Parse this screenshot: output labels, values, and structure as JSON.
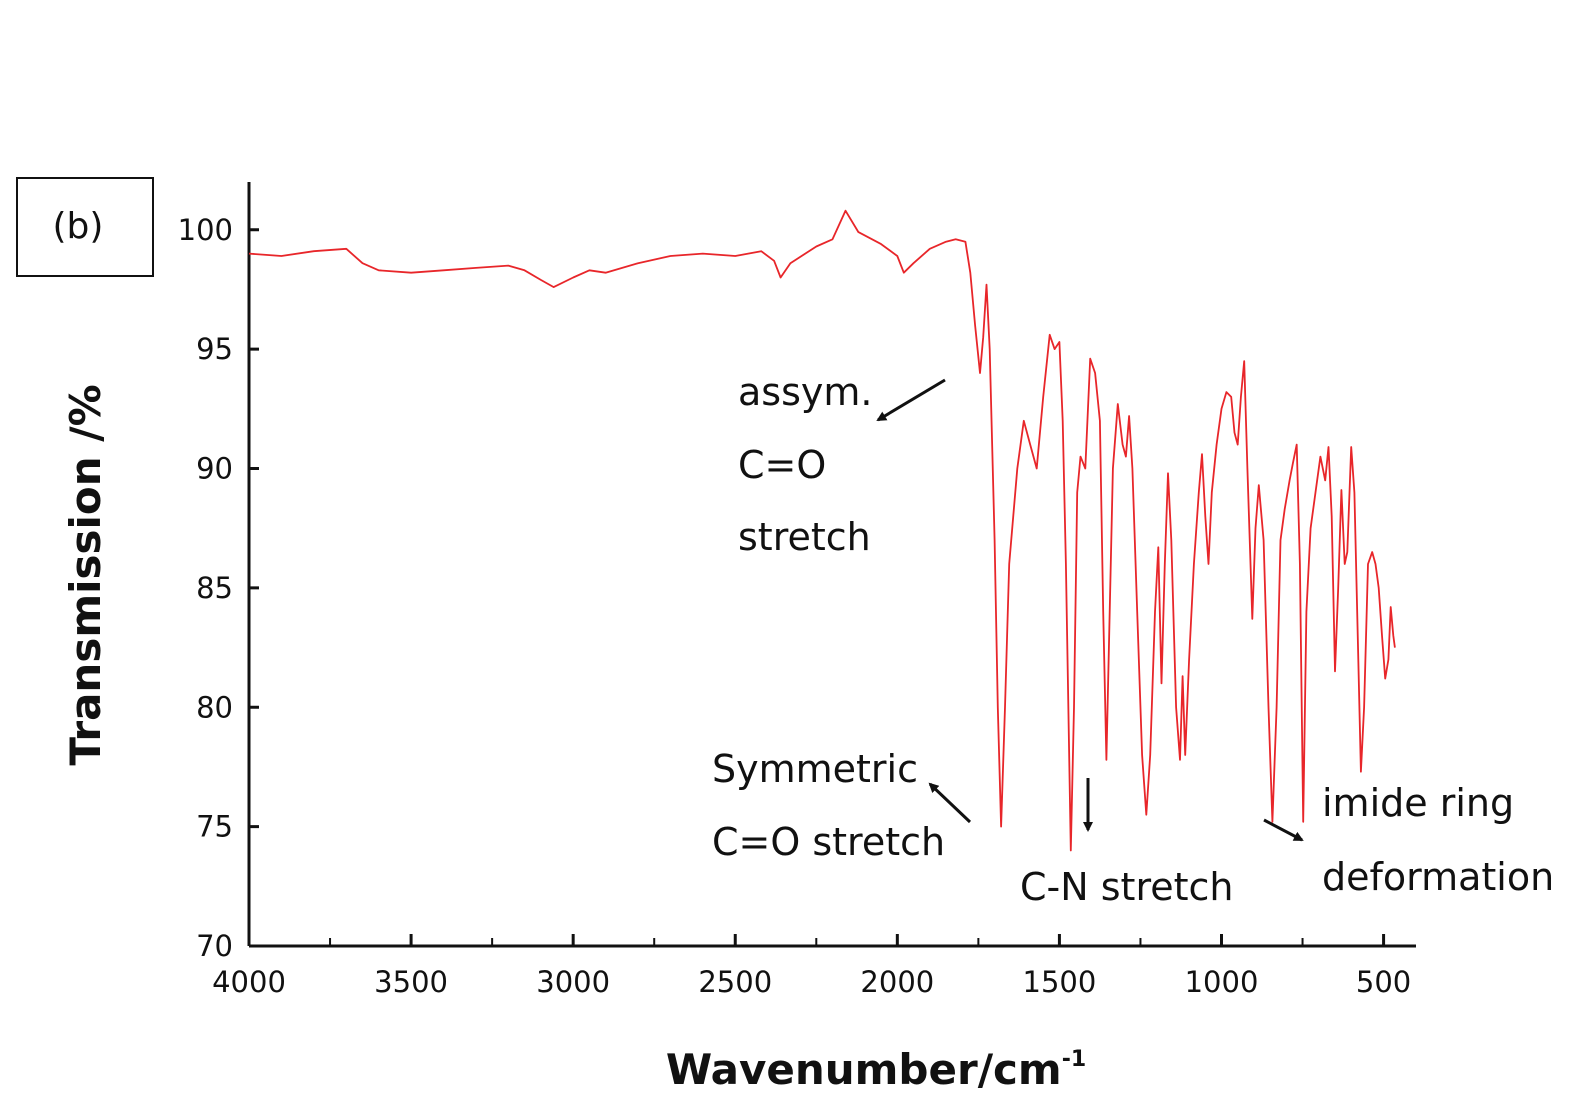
{
  "panel_label": "(b)",
  "colors": {
    "line": "#e8262a",
    "axis": "#111111"
  },
  "chart_data": {
    "type": "line",
    "title": "",
    "xlabel": "Wavenumber/cm",
    "xlabel_sup": "-1",
    "ylabel": "Transmission /%",
    "xlim": [
      4000,
      400
    ],
    "ylim": [
      70,
      102
    ],
    "x_reversed": true,
    "xticks": [
      4000,
      3500,
      3000,
      2500,
      2000,
      1500,
      1000,
      500
    ],
    "xtick_labels": [
      "4000",
      "3500",
      "3000",
      "2500",
      "2000",
      "1500",
      "1000",
      "500"
    ],
    "yticks": [
      70,
      75,
      80,
      85,
      90,
      95,
      100
    ],
    "ytick_labels": [
      "70",
      "75",
      "80",
      "85",
      "90",
      "95",
      "100"
    ],
    "grid": false,
    "legend": "none",
    "series": [
      {
        "points": [
          [
            4000,
            99.0
          ],
          [
            3900,
            98.9
          ],
          [
            3800,
            99.1
          ],
          [
            3700,
            99.2
          ],
          [
            3650,
            98.6
          ],
          [
            3600,
            98.3
          ],
          [
            3500,
            98.2
          ],
          [
            3400,
            98.3
          ],
          [
            3300,
            98.4
          ],
          [
            3200,
            98.5
          ],
          [
            3150,
            98.3
          ],
          [
            3100,
            97.9
          ],
          [
            3060,
            97.6
          ],
          [
            3000,
            98.0
          ],
          [
            2950,
            98.3
          ],
          [
            2900,
            98.2
          ],
          [
            2800,
            98.6
          ],
          [
            2700,
            98.9
          ],
          [
            2600,
            99.0
          ],
          [
            2500,
            98.9
          ],
          [
            2420,
            99.1
          ],
          [
            2380,
            98.7
          ],
          [
            2360,
            98.0
          ],
          [
            2330,
            98.6
          ],
          [
            2250,
            99.3
          ],
          [
            2200,
            99.6
          ],
          [
            2160,
            100.8
          ],
          [
            2120,
            99.9
          ],
          [
            2050,
            99.4
          ],
          [
            2000,
            98.9
          ],
          [
            1980,
            98.2
          ],
          [
            1950,
            98.6
          ],
          [
            1900,
            99.2
          ],
          [
            1850,
            99.5
          ],
          [
            1820,
            99.6
          ],
          [
            1790,
            99.5
          ],
          [
            1775,
            98.2
          ],
          [
            1760,
            96.0
          ],
          [
            1745,
            94.0
          ],
          [
            1735,
            95.5
          ],
          [
            1725,
            97.7
          ],
          [
            1715,
            95.0
          ],
          [
            1700,
            87.0
          ],
          [
            1690,
            80.0
          ],
          [
            1680,
            75.0
          ],
          [
            1668,
            80.0
          ],
          [
            1655,
            86.0
          ],
          [
            1630,
            90.0
          ],
          [
            1610,
            92.0
          ],
          [
            1590,
            91.0
          ],
          [
            1570,
            90.0
          ],
          [
            1550,
            93.0
          ],
          [
            1530,
            95.6
          ],
          [
            1515,
            95.0
          ],
          [
            1500,
            95.3
          ],
          [
            1490,
            92.0
          ],
          [
            1480,
            86.0
          ],
          [
            1465,
            74.0
          ],
          [
            1455,
            80.0
          ],
          [
            1445,
            89.0
          ],
          [
            1435,
            90.5
          ],
          [
            1420,
            90.0
          ],
          [
            1405,
            94.6
          ],
          [
            1390,
            94.0
          ],
          [
            1375,
            92.0
          ],
          [
            1365,
            84.0
          ],
          [
            1355,
            77.8
          ],
          [
            1345,
            84.0
          ],
          [
            1335,
            90.0
          ],
          [
            1320,
            92.7
          ],
          [
            1305,
            91.0
          ],
          [
            1295,
            90.5
          ],
          [
            1285,
            92.2
          ],
          [
            1275,
            90.0
          ],
          [
            1260,
            84.0
          ],
          [
            1245,
            78.0
          ],
          [
            1232,
            75.5
          ],
          [
            1220,
            78.0
          ],
          [
            1205,
            84.0
          ],
          [
            1195,
            86.7
          ],
          [
            1185,
            81.0
          ],
          [
            1175,
            86.0
          ],
          [
            1165,
            89.8
          ],
          [
            1155,
            87.0
          ],
          [
            1140,
            80.0
          ],
          [
            1128,
            77.8
          ],
          [
            1120,
            81.3
          ],
          [
            1112,
            78.0
          ],
          [
            1100,
            82.0
          ],
          [
            1085,
            86.0
          ],
          [
            1070,
            89.0
          ],
          [
            1060,
            90.6
          ],
          [
            1050,
            88.0
          ],
          [
            1040,
            86.0
          ],
          [
            1030,
            89.0
          ],
          [
            1015,
            91.0
          ],
          [
            1000,
            92.5
          ],
          [
            985,
            93.2
          ],
          [
            970,
            93.0
          ],
          [
            960,
            91.5
          ],
          [
            950,
            91.0
          ],
          [
            940,
            93.0
          ],
          [
            930,
            94.5
          ],
          [
            920,
            90.0
          ],
          [
            905,
            83.7
          ],
          [
            895,
            87.5
          ],
          [
            885,
            89.3
          ],
          [
            870,
            87.0
          ],
          [
            855,
            80.0
          ],
          [
            843,
            75.2
          ],
          [
            830,
            80.0
          ],
          [
            818,
            87.0
          ],
          [
            805,
            88.3
          ],
          [
            790,
            89.5
          ],
          [
            780,
            90.2
          ],
          [
            768,
            91.0
          ],
          [
            758,
            86.0
          ],
          [
            748,
            75.2
          ],
          [
            738,
            84.0
          ],
          [
            725,
            87.5
          ],
          [
            710,
            89.0
          ],
          [
            695,
            90.5
          ],
          [
            680,
            89.5
          ],
          [
            670,
            90.9
          ],
          [
            660,
            88.0
          ],
          [
            650,
            81.5
          ],
          [
            640,
            85.0
          ],
          [
            630,
            89.1
          ],
          [
            620,
            86.0
          ],
          [
            612,
            86.5
          ],
          [
            600,
            90.9
          ],
          [
            590,
            89.0
          ],
          [
            578,
            82.0
          ],
          [
            570,
            77.3
          ],
          [
            560,
            80.0
          ],
          [
            548,
            86.0
          ],
          [
            535,
            86.5
          ],
          [
            525,
            86.0
          ],
          [
            515,
            85.0
          ],
          [
            505,
            83.0
          ],
          [
            495,
            81.2
          ],
          [
            485,
            82.0
          ],
          [
            478,
            84.2
          ],
          [
            470,
            83.0
          ],
          [
            465,
            82.5
          ]
        ]
      }
    ],
    "annotations": [
      {
        "lines": [
          "assym.",
          "C=O",
          "stretch"
        ]
      },
      {
        "lines": [
          "Symmetric",
          "C=O stretch"
        ]
      },
      {
        "lines": [
          "C-N stretch"
        ]
      },
      {
        "lines": [
          "imide ring",
          "deformation"
        ]
      }
    ]
  }
}
